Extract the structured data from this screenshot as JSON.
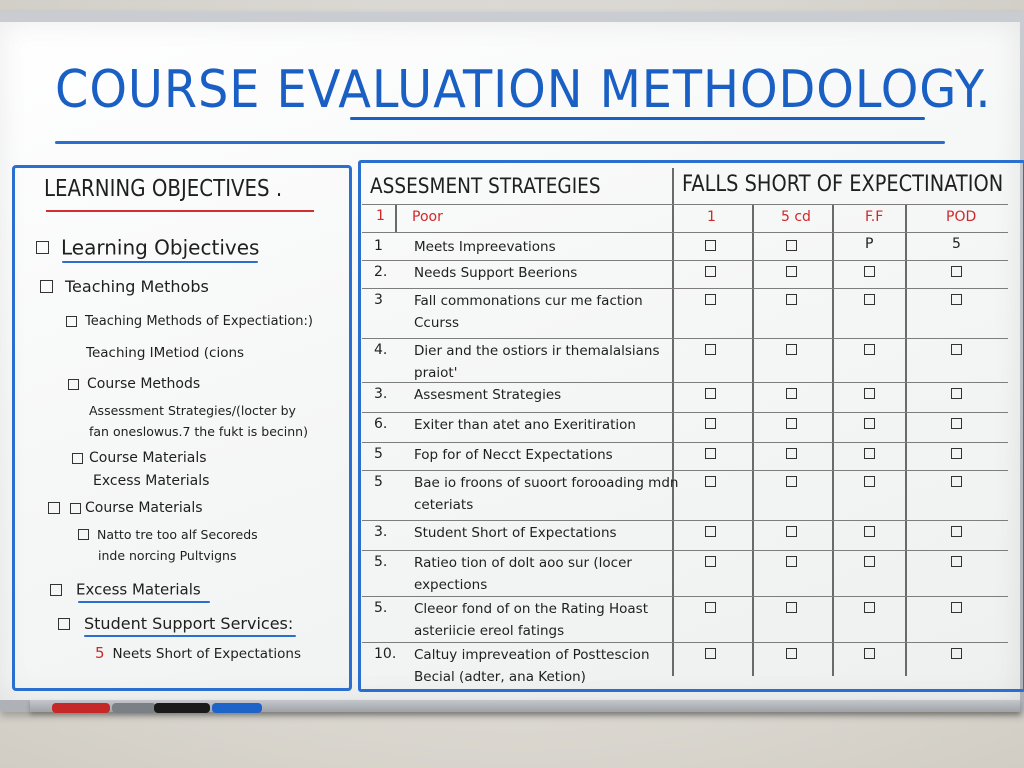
{
  "board": {
    "title": "COURSE EVALUATION METHODOLOGY.",
    "accent_color": "#1a5fc4",
    "red_color": "#d02828"
  },
  "left": {
    "heading": "LEARNING OBJECTIVES .",
    "items": [
      {
        "text": "Learning Objectives",
        "checkbox": true
      },
      {
        "text": "Teaching Methobs",
        "checkbox": true
      },
      {
        "text": "Teaching Methods of Expectiation:)",
        "checkbox": true
      },
      {
        "text": "Teaching IMetiod (cions",
        "checkbox": false
      },
      {
        "text": "Course Methods",
        "checkbox": true
      },
      {
        "text": "Assessment Strategies/(locter by",
        "checkbox": false
      },
      {
        "text": "fan oneslowus.7 the fukt is becinn)",
        "checkbox": false
      },
      {
        "text": "Course Materials",
        "checkbox": true
      },
      {
        "text": "Excess Materials",
        "checkbox": false
      },
      {
        "text": "Course Materials",
        "checkbox": true
      },
      {
        "text": "Natto tre too alf Secoreds",
        "checkbox": true
      },
      {
        "text": "inde norcing Pultvigns",
        "checkbox": false
      },
      {
        "text": "Excess Materials",
        "checkbox": true
      },
      {
        "text": "Student Support Services:",
        "checkbox": true
      },
      {
        "text": "Neets Short of Expectations",
        "checkbox": false,
        "number": "5"
      }
    ]
  },
  "table": {
    "header_left": "ASSESMENT STRATEGIES",
    "header_right": "FALLS SHORT OF EXPECTINATION",
    "subheader": {
      "num": "1",
      "label": "Poor",
      "cols": [
        "1",
        "5 cd",
        "F.F",
        "POD"
      ]
    },
    "rows": [
      {
        "num": "1",
        "lines": [
          "Meets Impreevations"
        ],
        "cols": [
          "☐",
          "☐",
          "P",
          "5"
        ]
      },
      {
        "num": "2.",
        "lines": [
          "Needs Support Beerions"
        ],
        "cols": [
          "☐",
          "☐",
          "☐",
          "☐"
        ]
      },
      {
        "num": "3",
        "lines": [
          "Fall commonations cur me faction",
          "Ccurss"
        ],
        "cols": [
          "☐",
          "☐",
          "☐",
          "☐"
        ]
      },
      {
        "num": "4.",
        "lines": [
          "Dier and the ostiors ir themalalsians",
          "praiot'"
        ],
        "cols": [
          "☐",
          "☐",
          "☐",
          "☐"
        ]
      },
      {
        "num": "3.",
        "lines": [
          "Assesment Strategies"
        ],
        "cols": [
          "☐",
          "☐",
          "☐",
          "☐"
        ]
      },
      {
        "num": "6.",
        "lines": [
          "Exiter than atet ano Exeritiration"
        ],
        "cols": [
          "☐",
          "☐",
          "☐",
          "☐"
        ]
      },
      {
        "num": "5",
        "lines": [
          "Fop for of Necct Expectations"
        ],
        "cols": [
          "☐",
          "☐",
          "☐",
          "☐"
        ]
      },
      {
        "num": "5",
        "lines": [
          "Bae io froons of suoort forooading mdn",
          "ceteriats"
        ],
        "cols": [
          "☐",
          "☐",
          "☐",
          "☐"
        ]
      },
      {
        "num": "3.",
        "lines": [
          "Student Short of Expectations"
        ],
        "cols": [
          "☐",
          "☐",
          "☐",
          "☐"
        ]
      },
      {
        "num": "5.",
        "lines": [
          "Ratieo tion of dolt aoo sur (locer",
          "expections"
        ],
        "cols": [
          "☐",
          "☐",
          "☐",
          "☐"
        ]
      },
      {
        "num": "5.",
        "lines": [
          "Cleeor fond of on the Rating Hoast",
          "asteriicie ereol fatings"
        ],
        "cols": [
          "☐",
          "☐",
          "☐",
          "☐"
        ]
      },
      {
        "num": "10.",
        "lines": [
          "Caltuy impreveation of Posttescion",
          "Becial (adter, ana Ketion)"
        ],
        "cols": [
          "☐",
          "☐",
          "☐",
          "☐"
        ]
      }
    ]
  },
  "tray": {
    "markers": [
      {
        "name": "red-marker",
        "color": "#c62828"
      },
      {
        "name": "gray-marker",
        "color": "#7b8087"
      },
      {
        "name": "black-marker",
        "color": "#1a1a1a"
      },
      {
        "name": "blue-marker",
        "color": "#1e63c7"
      }
    ]
  }
}
